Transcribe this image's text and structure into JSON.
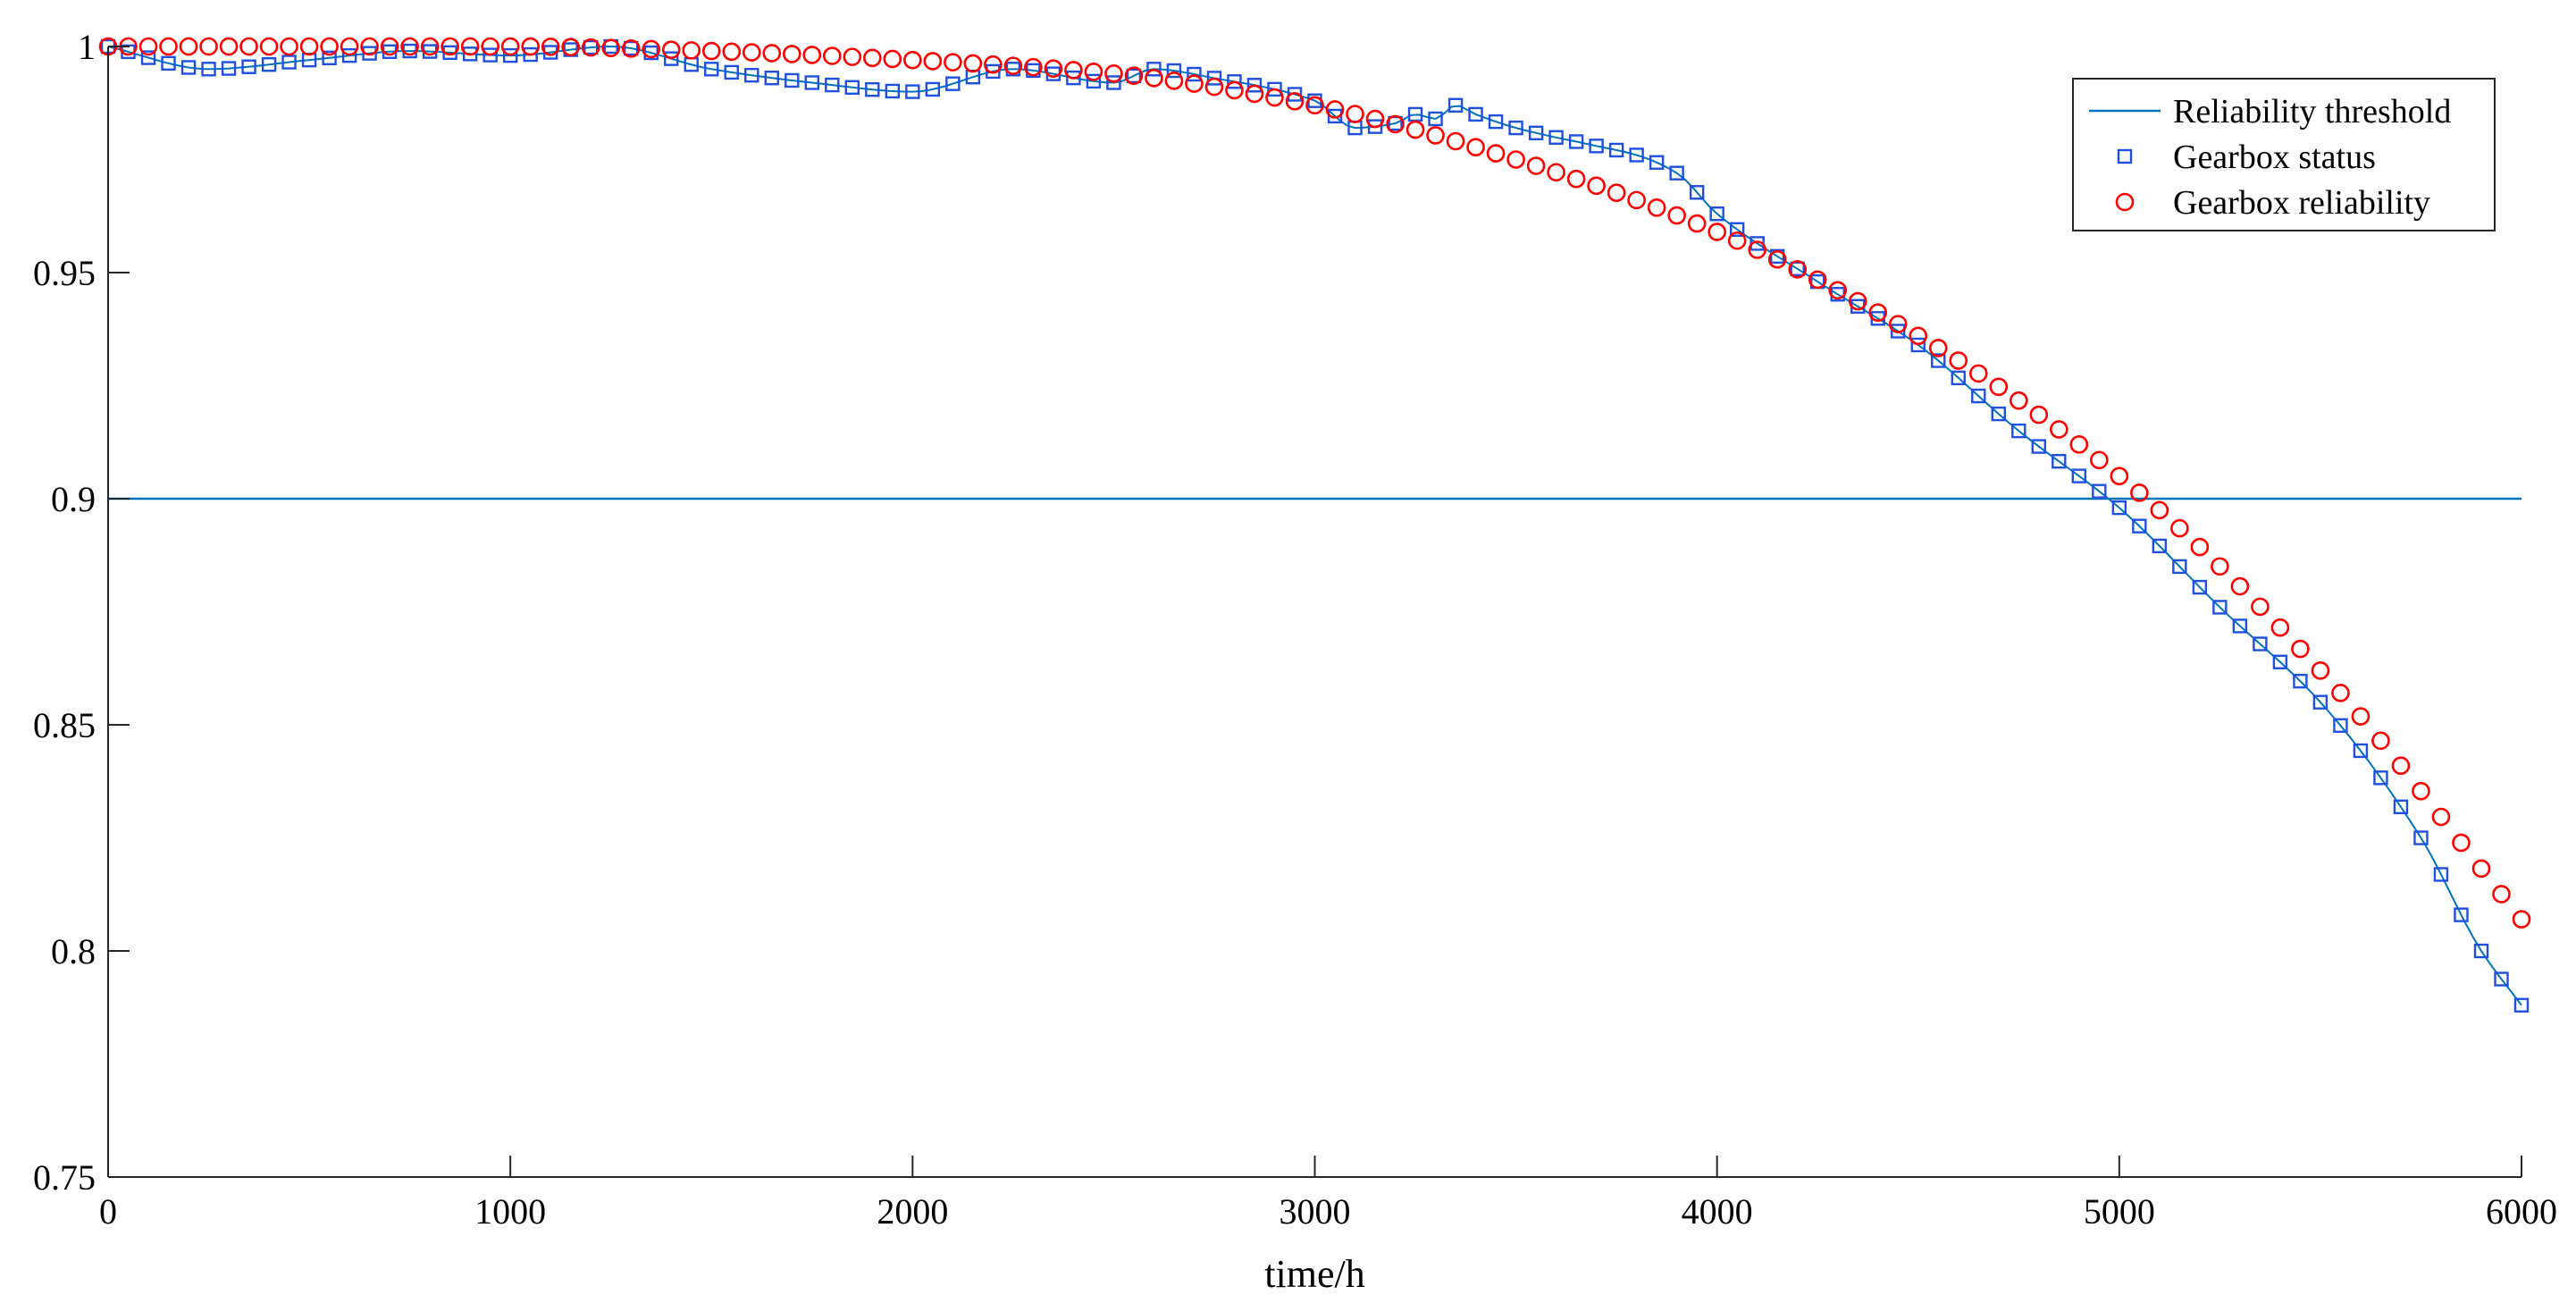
{
  "chart_data": {
    "type": "line",
    "title": "",
    "xlabel": "time/h",
    "ylabel": "",
    "xlim": [
      0,
      6000
    ],
    "ylim": [
      0.75,
      1.0
    ],
    "xticks": [
      0,
      1000,
      2000,
      3000,
      4000,
      5000,
      6000
    ],
    "yticks": [
      0.75,
      0.8,
      0.85,
      0.9,
      0.95,
      1.0
    ],
    "xtick_labels": [
      "0",
      "1000",
      "2000",
      "3000",
      "4000",
      "5000",
      "6000"
    ],
    "ytick_labels": [
      "0.75",
      "0.8",
      "0.85",
      "0.9",
      "0.95",
      "1"
    ],
    "grid": false,
    "legend_position": "top-right",
    "series": [
      {
        "name": "Reliability threshold",
        "style": "line",
        "color": "#0072BD",
        "x": [
          0,
          6000
        ],
        "y": [
          0.9,
          0.9
        ]
      },
      {
        "name": "Gearbox status",
        "style": "square-markers",
        "color": "#1f4fe0",
        "line_color": "#0072BD",
        "x": [
          0,
          250,
          500,
          750,
          1000,
          1250,
          1500,
          1750,
          2000,
          2250,
          2500,
          2600,
          2750,
          3000,
          3100,
          3200,
          3250,
          3300,
          3350,
          3400,
          3500,
          3700,
          3800,
          3900,
          4000,
          4250,
          4500,
          4750,
          5000,
          5250,
          5500,
          5750,
          5900,
          6000
        ],
        "y": [
          1.0,
          0.995,
          0.997,
          0.999,
          0.998,
          1.0,
          0.995,
          0.992,
          0.99,
          0.995,
          0.992,
          0.995,
          0.993,
          0.988,
          0.982,
          0.983,
          0.985,
          0.984,
          0.987,
          0.985,
          0.982,
          0.978,
          0.976,
          0.972,
          0.963,
          0.948,
          0.934,
          0.915,
          0.898,
          0.876,
          0.855,
          0.825,
          0.8,
          0.788
        ]
      },
      {
        "name": "Gearbox reliability",
        "style": "circle-markers",
        "color": "#ff0000",
        "x": [
          0,
          500,
          1000,
          1500,
          2000,
          2500,
          3000,
          3500,
          4000,
          4500,
          5000,
          5500,
          6000
        ],
        "y": [
          1.0,
          1.0,
          1.0,
          0.999,
          0.997,
          0.994,
          0.987,
          0.975,
          0.959,
          0.936,
          0.905,
          0.862,
          0.807
        ]
      }
    ]
  }
}
